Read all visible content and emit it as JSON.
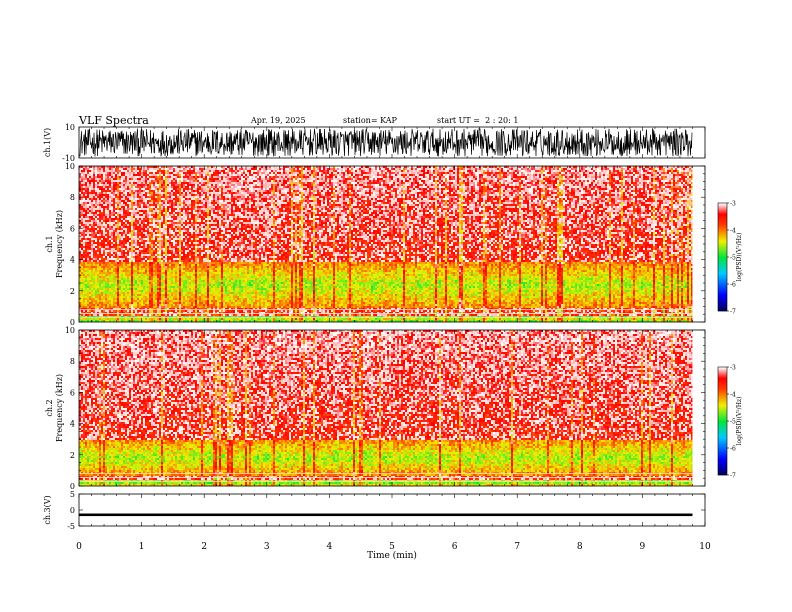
{
  "header": {
    "title": "VLF Spectra",
    "date": "Apr. 19, 2025",
    "station": "station= KAP",
    "start": "start UT =  2 : 20: 1"
  },
  "chart_data": [
    {
      "type": "line",
      "name": "ch1-waveform",
      "ylabel": "ch.1(V)",
      "ylim": [
        -10,
        10
      ],
      "yticks": [
        "10",
        "-10"
      ],
      "xlim": [
        0,
        10
      ],
      "data_end_x": 9.8,
      "amplitude_range": [
        -9,
        9
      ]
    },
    {
      "type": "heatmap",
      "name": "ch1-spectrogram",
      "ylabel": "ch.1\nFrequency (kHz)",
      "ylim": [
        0,
        10
      ],
      "yticks": [
        "0",
        "2",
        "4",
        "6",
        "8",
        "10"
      ],
      "xlim": [
        0,
        10
      ],
      "data_end_x": 9.8,
      "strong_band_khz": [
        0.9,
        3.8
      ],
      "colorbar": {
        "label": "log(PSD)(V²/Hz)",
        "range": [
          -7,
          -3
        ],
        "ticks": [
          "-3",
          "-4",
          "-5",
          "-6",
          "-7"
        ]
      }
    },
    {
      "type": "heatmap",
      "name": "ch2-spectrogram",
      "ylabel": "ch.2\nFrequency (kHz)",
      "ylim": [
        0,
        10
      ],
      "yticks": [
        "0",
        "2",
        "4",
        "6",
        "8",
        "10"
      ],
      "xlim": [
        0,
        10
      ],
      "data_end_x": 9.8,
      "strong_band_khz": [
        0.6,
        3.0
      ],
      "colorbar": {
        "label": "log(PSD)(V²/Hz)",
        "range": [
          -7,
          -3
        ],
        "ticks": [
          "-3",
          "-4",
          "-5",
          "-6",
          "-7"
        ]
      }
    },
    {
      "type": "line",
      "name": "ch3-waveform",
      "ylabel": "ch.3(V)",
      "ylim": [
        -5,
        5
      ],
      "yticks": [
        "5",
        "0",
        "-5"
      ],
      "xlim": [
        0,
        10
      ],
      "data_end_x": 9.8,
      "level_range": [
        -1.9,
        -1.1
      ]
    }
  ],
  "xaxis": {
    "label": "Time (min)",
    "ticks": [
      "0",
      "1",
      "2",
      "3",
      "4",
      "5",
      "6",
      "7",
      "8",
      "9",
      "10"
    ]
  }
}
